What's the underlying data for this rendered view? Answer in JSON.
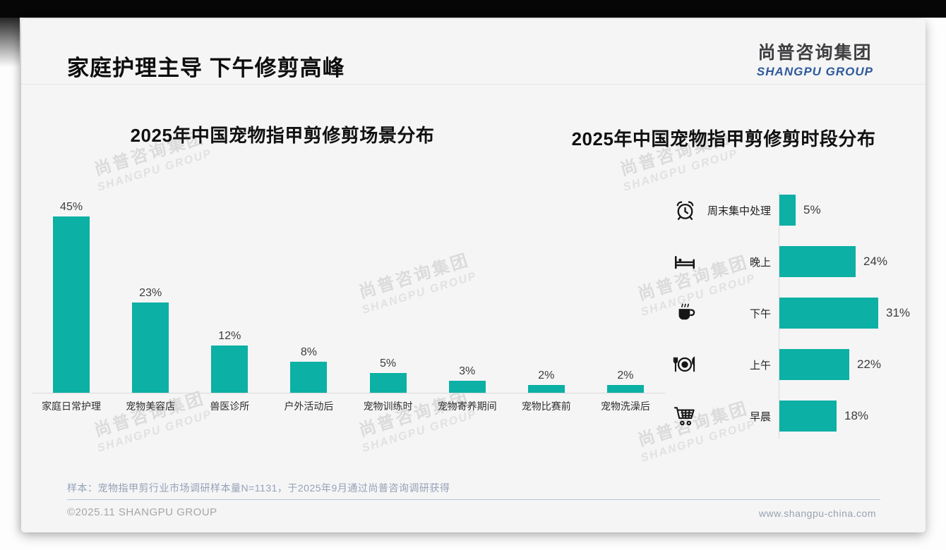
{
  "page": {
    "title": "家庭护理主导 下午修剪高峰",
    "logo": {
      "cn": "尚普咨询集团",
      "en": "SHANGPU GROUP"
    },
    "watermark": {
      "cn": "尚普咨询集团",
      "en": "SHANGPU GROUP"
    },
    "sample_note": "样本：宠物指甲剪行业市场调研样本量N=1131，于2025年9月通过尚普咨询调研获得",
    "footer": {
      "left": "©2025.11 SHANGPU GROUP",
      "right": "www.shangpu-china.com"
    },
    "colors": {
      "accent_teal": "#0cb0a4",
      "logo_blue": "#2d5a9b",
      "axis_gray": "#d9d9d9"
    }
  },
  "chart_data": [
    {
      "type": "bar",
      "orientation": "vertical",
      "title": "2025年中国宠物指甲剪修剪场景分布",
      "categories": [
        "家庭日常护理",
        "宠物美容店",
        "兽医诊所",
        "户外活动后",
        "宠物训练时",
        "宠物寄养期间",
        "宠物比赛前",
        "宠物洗澡后"
      ],
      "values": [
        45,
        23,
        12,
        8,
        5,
        3,
        2,
        2
      ],
      "data_labels": [
        "45%",
        "23%",
        "12%",
        "8%",
        "5%",
        "3%",
        "2%",
        "2%"
      ],
      "unit": "%",
      "bar_color": "#0cb0a4",
      "xlabel": "",
      "ylabel": "",
      "ylim": [
        0,
        50
      ],
      "grid": false,
      "legend": false
    },
    {
      "type": "bar",
      "orientation": "horizontal",
      "title": "2025年中国宠物指甲剪修剪时段分布",
      "categories": [
        "周末集中处理",
        "晚上",
        "下午",
        "上午",
        "早晨"
      ],
      "values": [
        5,
        24,
        31,
        22,
        18
      ],
      "data_labels": [
        "5%",
        "24%",
        "31%",
        "22%",
        "18%"
      ],
      "icons": [
        "alarm-clock-icon",
        "bed-icon",
        "coffee-cup-icon",
        "dining-plate-icon",
        "shopping-cart-icon"
      ],
      "unit": "%",
      "bar_color": "#0cb0a4",
      "xlabel": "",
      "ylabel": "",
      "xlim": [
        0,
        35
      ],
      "grid": false,
      "legend": false
    }
  ]
}
